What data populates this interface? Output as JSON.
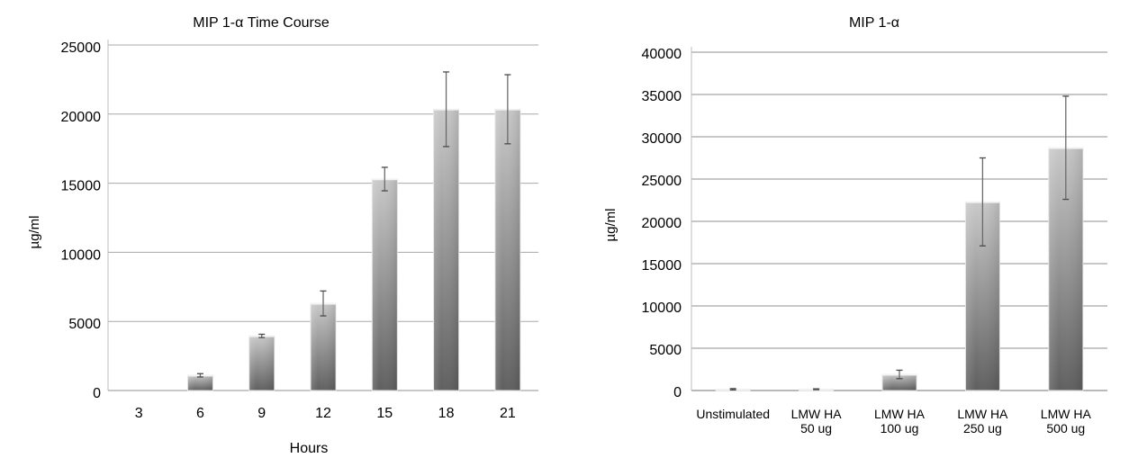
{
  "chart_data": [
    {
      "type": "bar",
      "title": "MIP 1-α Time Course",
      "xlabel": "Hours",
      "ylabel": "µg/ml",
      "categories": [
        "3",
        "6",
        "9",
        "12",
        "15",
        "18",
        "21"
      ],
      "values": [
        0,
        1100,
        3950,
        6300,
        15300,
        20350,
        20350
      ],
      "error": [
        0,
        120,
        120,
        900,
        850,
        2700,
        2500
      ],
      "ylim": [
        0,
        25000
      ],
      "yticks": [
        "0",
        "5000",
        "10000",
        "15000",
        "20000",
        "25000"
      ],
      "grid": true
    },
    {
      "type": "bar",
      "title": "MIP 1-α",
      "xlabel": "",
      "ylabel": "µg/ml",
      "categories": [
        [
          "Unstimulated"
        ],
        [
          "LMW HA",
          "50 ug"
        ],
        [
          "LMW HA",
          "100 ug"
        ],
        [
          "LMW HA",
          "250 ug"
        ],
        [
          "LMW HA",
          "500 ug"
        ]
      ],
      "values": [
        150,
        150,
        1900,
        22300,
        28700
      ],
      "error": [
        80,
        50,
        500,
        5200,
        6100
      ],
      "ylim": [
        0,
        40000
      ],
      "yticks": [
        "0",
        "5000",
        "10000",
        "15000",
        "20000",
        "25000",
        "30000",
        "35000",
        "40000"
      ],
      "grid": true
    }
  ]
}
